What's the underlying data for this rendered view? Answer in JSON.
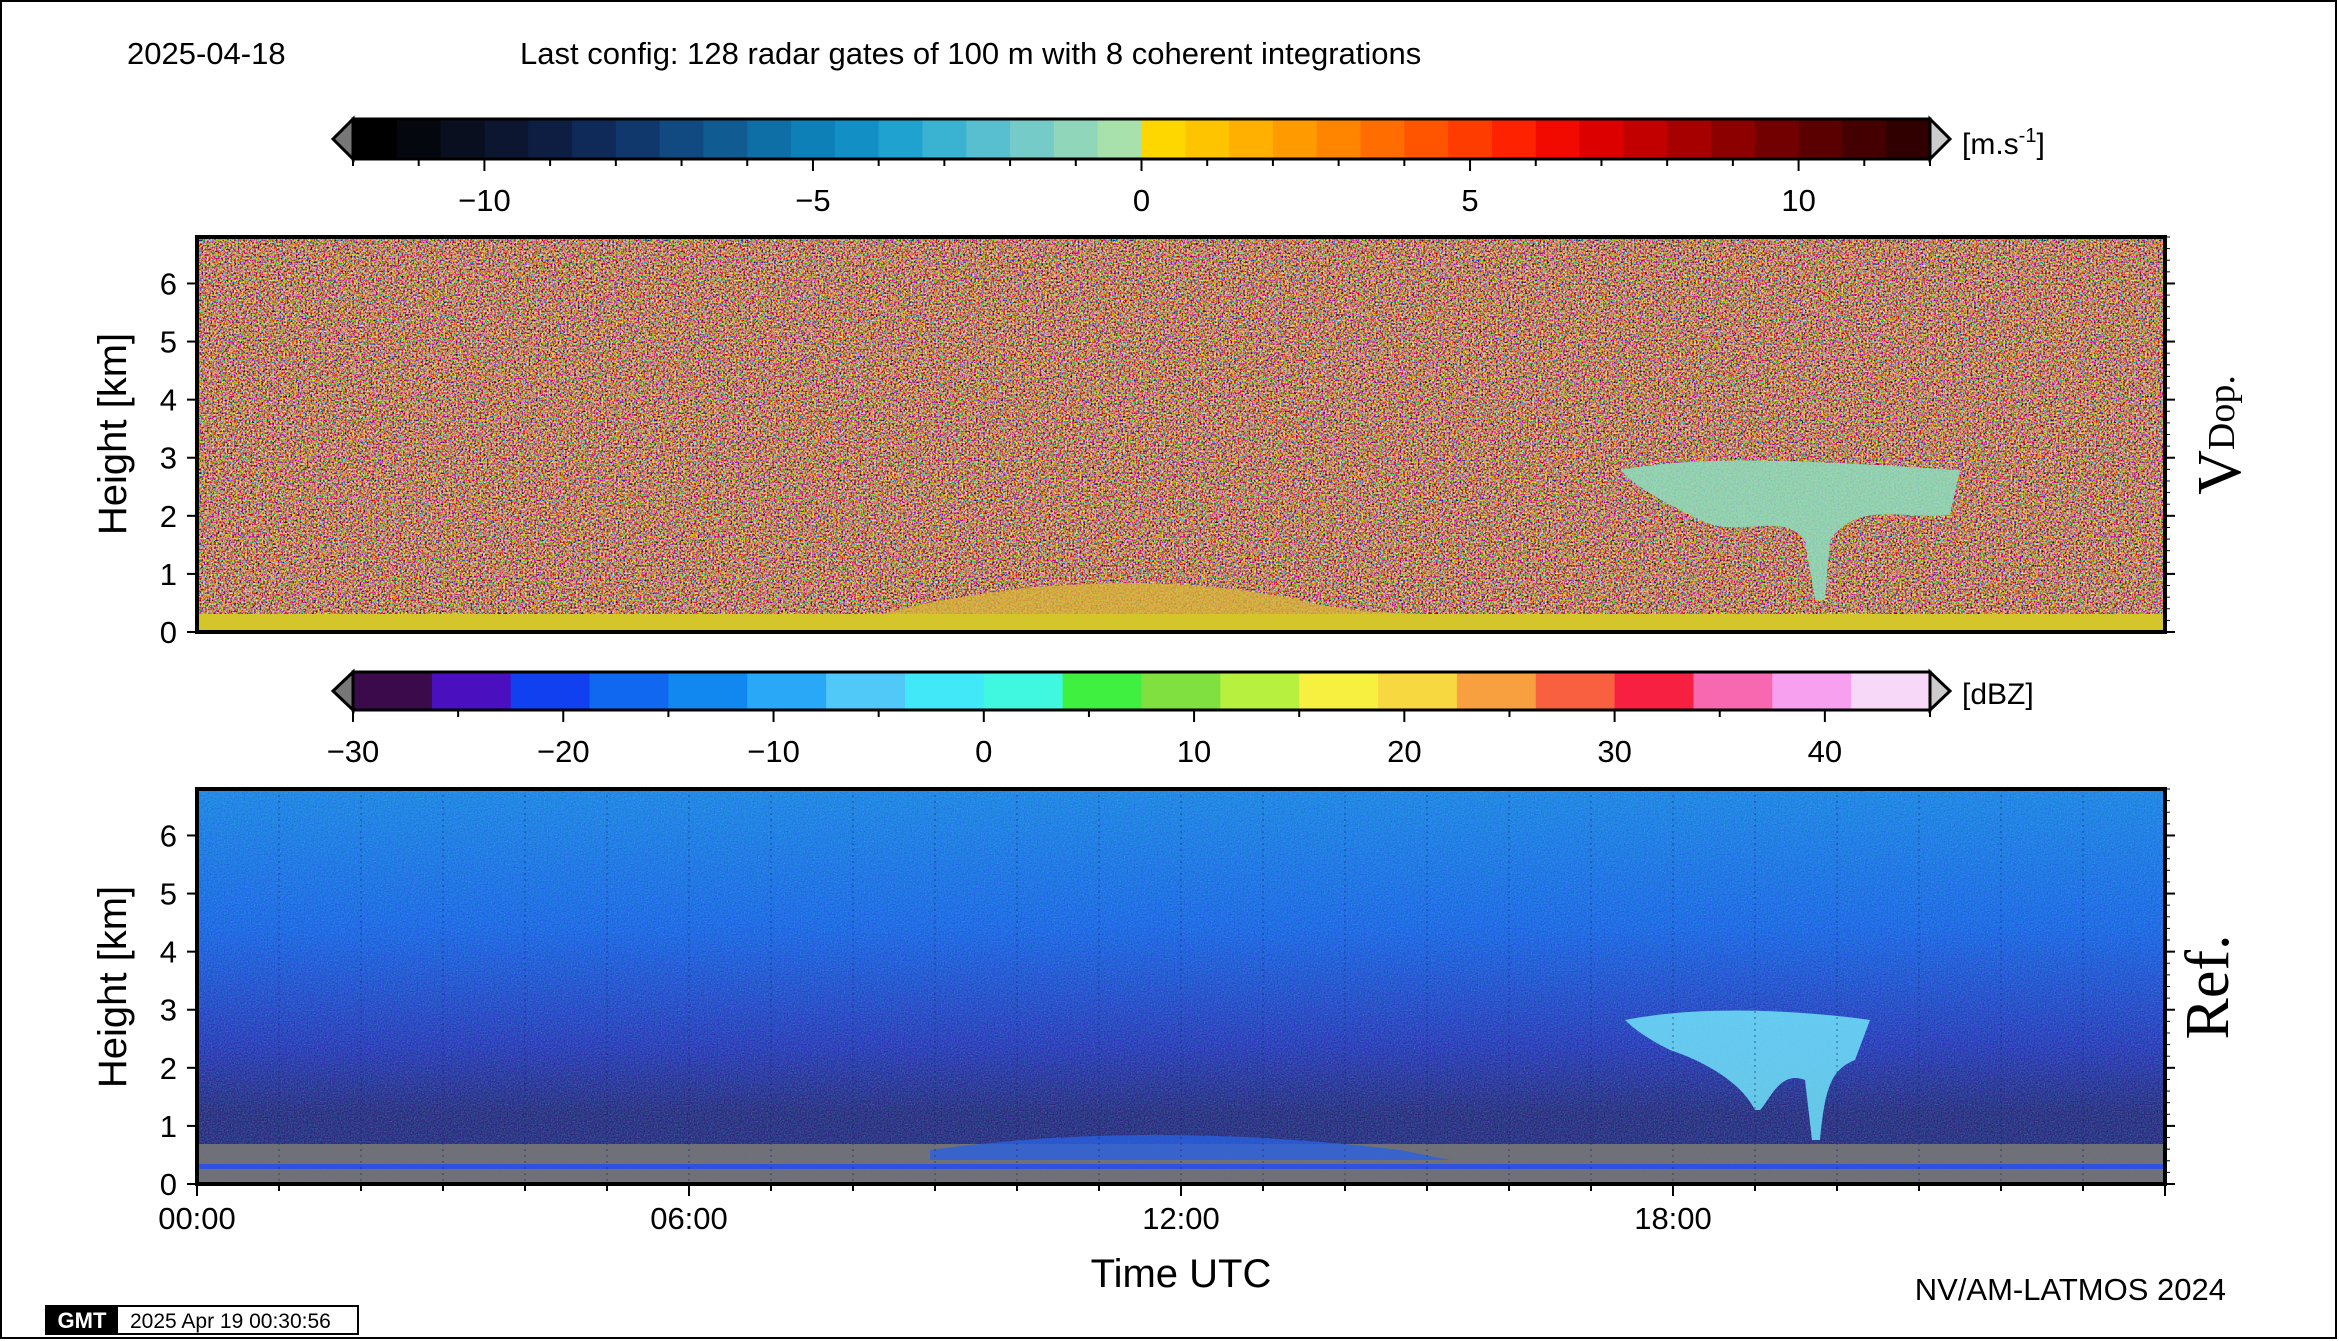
{
  "header": {
    "date": "2025-04-18",
    "config": "Last config: 128 radar gates of 100 m with 8 coherent integrations"
  },
  "footer": {
    "credit": "NV/AM-LATMOS 2024",
    "gmt_logo": "GMT",
    "timestamp": "2025 Apr 19 00:30:56"
  },
  "chart_data": [
    {
      "type": "heatmap",
      "panel_label_main": "V",
      "panel_label_sub": "Dop.",
      "ylabel": "Height [km]",
      "xlabel": "",
      "ylim": [
        0,
        6.8
      ],
      "xlim": [
        0,
        24
      ],
      "yticks": [
        "0",
        "1",
        "2",
        "3",
        "4",
        "5",
        "6"
      ],
      "colorbar": {
        "unit_main": "[m.s",
        "unit_sup": "-1",
        "unit_tail": "]",
        "range": [
          -12,
          12
        ],
        "ticks": [
          -10,
          -5,
          0,
          5,
          10
        ],
        "tick_labels": [
          "−10",
          "−5",
          "0",
          "5",
          "10"
        ],
        "colors": [
          "#000000",
          "#05070f",
          "#0a0f1f",
          "#0c1630",
          "#0e1d42",
          "#0f2a58",
          "#10386c",
          "#104a80",
          "#105c92",
          "#0e6ea6",
          "#0d80b8",
          "#1290c6",
          "#1fa2cf",
          "#3ab2d2",
          "#58bfd0",
          "#74cbc8",
          "#8fd6bb",
          "#a9e1ad",
          "#ffd700",
          "#ffc400",
          "#ffb000",
          "#ff9a00",
          "#ff8400",
          "#ff6c00",
          "#ff5400",
          "#ff3c00",
          "#ff2200",
          "#f20a00",
          "#dc0000",
          "#c20000",
          "#a60000",
          "#8c0000",
          "#720000",
          "#5a0000",
          "#440000",
          "#300000"
        ],
        "under_color": "#777777",
        "over_color": "#cccccc"
      },
      "features": {
        "surface_layer_color": "#d4c52a",
        "cloud_color": "#8fd8b8"
      }
    },
    {
      "type": "heatmap",
      "panel_label_main": "Ref.",
      "ylabel": "Height [km]",
      "xlabel": "Time UTC",
      "ylim": [
        0,
        6.8
      ],
      "xlim": [
        0,
        24
      ],
      "yticks": [
        "0",
        "1",
        "2",
        "3",
        "4",
        "5",
        "6"
      ],
      "xticks": [
        "00:00",
        "06:00",
        "12:00",
        "18:00"
      ],
      "colorbar": {
        "unit_main": "[dBZ]",
        "range": [
          -30,
          45
        ],
        "ticks": [
          -30,
          -20,
          -10,
          0,
          10,
          20,
          30,
          40
        ],
        "tick_labels": [
          "−30",
          "−20",
          "−10",
          "0",
          "10",
          "20",
          "30",
          "40"
        ],
        "colors": [
          "#3a0a4a",
          "#4a10c0",
          "#1040f0",
          "#1068f0",
          "#1088f0",
          "#2aa8f8",
          "#50c8f8",
          "#40e8f8",
          "#40f8e0",
          "#40f040",
          "#80e040",
          "#b8f040",
          "#f8f040",
          "#f8d840",
          "#f8a040",
          "#f86040",
          "#f82040",
          "#f868b0",
          "#f8a0f0",
          "#f8d8f8"
        ],
        "under_color": "#777777",
        "over_color": "#cccccc"
      },
      "features": {
        "background_color": "#1a4ad8",
        "low_color": "#2a1060",
        "ground_color": "#777777",
        "cloud_color": "#70e0f8"
      }
    }
  ]
}
